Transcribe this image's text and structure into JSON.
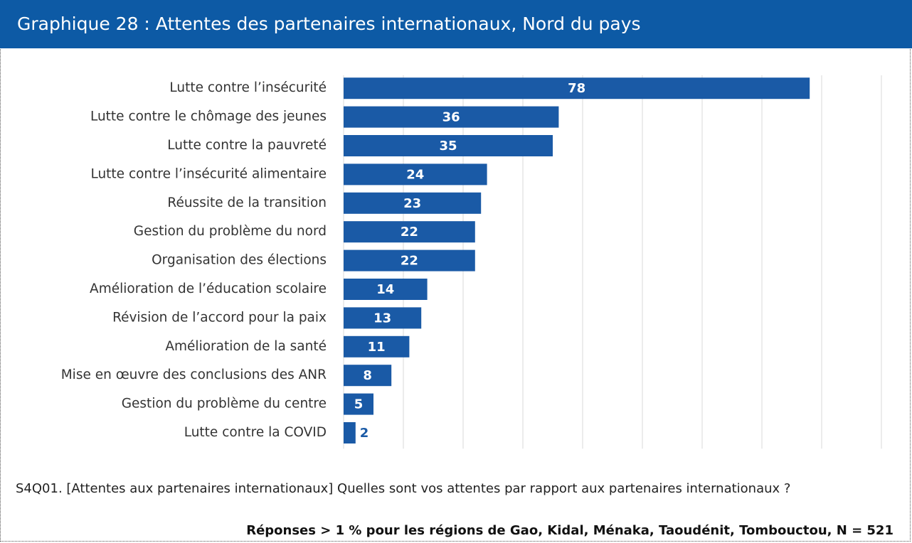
{
  "chart_data": {
    "type": "bar",
    "orientation": "horizontal",
    "title": "Graphique 28 : Attentes des partenaires internationaux, Nord du pays",
    "categories": [
      "Lutte contre l’insécurité",
      "Lutte contre le chômage des jeunes",
      "Lutte contre la pauvreté",
      "Lutte contre l’insécurité alimentaire",
      "Réussite de la transition",
      "Gestion du problème du nord",
      "Organisation des élections",
      "Amélioration de l’éducation scolaire",
      "Révision de l’accord pour la paix",
      "Amélioration de la santé",
      "Mise en œuvre des conclusions des ANR",
      "Gestion du problème du centre",
      "Lutte contre la COVID"
    ],
    "values": [
      78,
      36,
      35,
      24,
      23,
      22,
      22,
      14,
      13,
      11,
      8,
      5,
      2
    ],
    "color": "#1a5aa6",
    "xlim": [
      0,
      90
    ],
    "xticks": [
      0,
      10,
      20,
      30,
      40,
      50,
      60,
      70,
      80,
      90
    ],
    "grid": true,
    "note": "S4Q01. [Attentes aux partenaires internationaux] Quelles sont vos attentes par rapport aux partenaires internationaux ?",
    "source": "Réponses > 1 % pour les régions de Gao, Kidal, Ménaka, Taoudénit, Tombouctou, N = 521"
  }
}
